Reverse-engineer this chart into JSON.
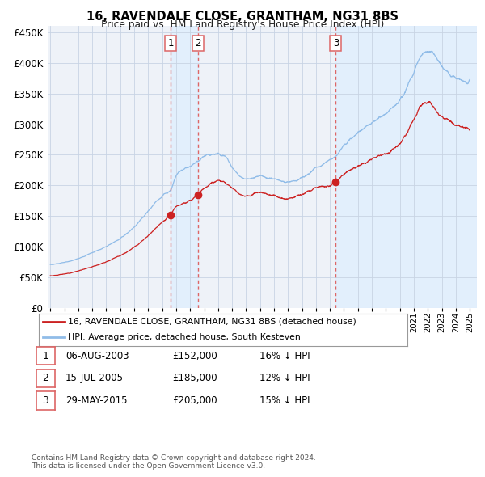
{
  "title": "16, RAVENDALE CLOSE, GRANTHAM, NG31 8BS",
  "subtitle": "Price paid vs. HM Land Registry's House Price Index (HPI)",
  "legend_line1": "16, RAVENDALE CLOSE, GRANTHAM, NG31 8BS (detached house)",
  "legend_line2": "HPI: Average price, detached house, South Kesteven",
  "footer1": "Contains HM Land Registry data © Crown copyright and database right 2024.",
  "footer2": "This data is licensed under the Open Government Licence v3.0.",
  "tx": [
    {
      "num": 1,
      "x": 2003.6,
      "price": 152000
    },
    {
      "num": 2,
      "x": 2005.55,
      "price": 185000
    },
    {
      "num": 3,
      "x": 2015.42,
      "price": 205000
    }
  ],
  "table_rows": [
    {
      "num": 1,
      "date": "06-AUG-2003",
      "price": "£152,000",
      "pct": "16% ↓ HPI"
    },
    {
      "num": 2,
      "date": "15-JUL-2005",
      "price": "£185,000",
      "pct": "12% ↓ HPI"
    },
    {
      "num": 3,
      "date": "29-MAY-2015",
      "price": "£205,000",
      "pct": "15% ↓ HPI"
    }
  ],
  "hpi_color": "#90bce8",
  "price_color": "#cc2222",
  "marker_color": "#cc2222",
  "vline_color": "#dd6666",
  "shade_color": "#ddeeff",
  "grid_color": "#c8d4e4",
  "bg_color": "#eef2f8",
  "ylim": [
    0,
    460000
  ],
  "yticks": [
    0,
    50000,
    100000,
    150000,
    200000,
    250000,
    300000,
    350000,
    400000,
    450000
  ],
  "xmin": 1994.8,
  "xmax": 2025.5
}
